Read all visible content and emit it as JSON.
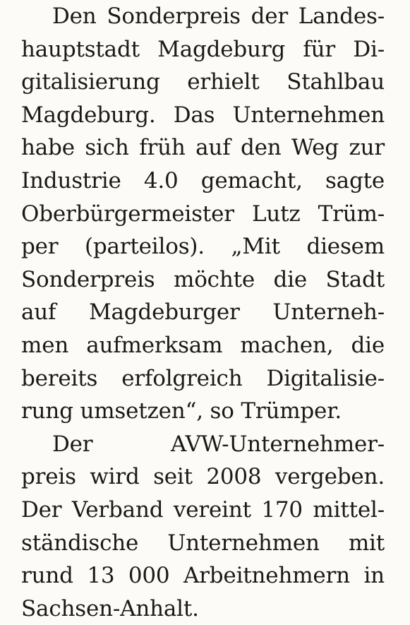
{
  "article": {
    "paragraphs": [
      {
        "lines": [
          "Den Sonderpreis der Landes-",
          "hauptstadt Magdeburg für Di-",
          "gitalisierung erhielt Stahlbau",
          "Magdeburg. Das Unternehmen",
          "habe sich früh auf den Weg zur",
          "Industrie 4.0 gemacht, sagte",
          "Oberbürgermeister Lutz Trüm-",
          "per (parteilos). „Mit diesem",
          "Sonderpreis möchte die Stadt",
          "auf Magdeburger Unterneh-",
          "men aufmerksam machen, die",
          "bereits erfolgreich Digitalisie-",
          "rung umsetzen“, so Trümper."
        ]
      },
      {
        "lines": [
          "Der AVW-Unternehmer-",
          "preis wird seit 2008 vergeben.",
          "Der Verband vereint 170 mittel-",
          "ständische Unternehmen mit",
          "rund 13 000 Arbeitnehmern in",
          "Sachsen-Anhalt."
        ]
      }
    ]
  }
}
